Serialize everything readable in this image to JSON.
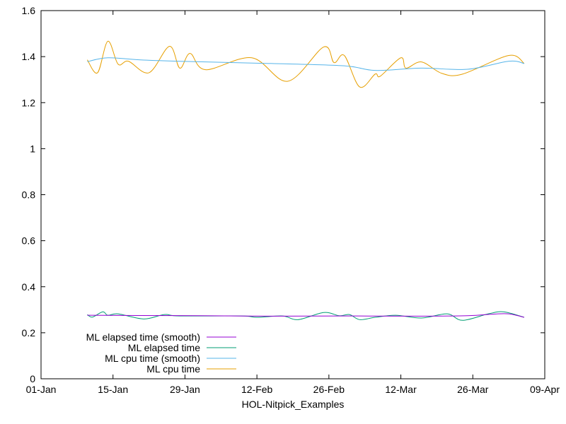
{
  "chart_data": {
    "type": "line",
    "title": "",
    "xlabel": "HOL-Nitpick_Examples",
    "ylabel": "",
    "ylim": [
      0,
      1.6
    ],
    "xlim": [
      "01-Jan",
      "09-Apr"
    ],
    "x_ticks": [
      "01-Jan",
      "15-Jan",
      "29-Jan",
      "12-Feb",
      "26-Feb",
      "12-Mar",
      "26-Mar",
      "09-Apr"
    ],
    "y_ticks": [
      "0",
      "0.2",
      "0.4",
      "0.6",
      "0.8",
      "1",
      "1.2",
      "1.4",
      "1.6"
    ],
    "grid": false,
    "legend_placement": "bottom-left",
    "series": [
      {
        "name": "ML elapsed time (smooth)",
        "color": "#9400d3",
        "points": [
          [
            "10-Jan",
            0.276
          ],
          [
            "20-Jan",
            0.275
          ],
          [
            "01-Feb",
            0.274
          ],
          [
            "15-Feb",
            0.272
          ],
          [
            "01-Mar",
            0.273
          ],
          [
            "15-Mar",
            0.272
          ],
          [
            "25-Mar",
            0.274
          ],
          [
            "30-Mar",
            0.281
          ],
          [
            "02-Apr",
            0.282
          ],
          [
            "05-Apr",
            0.267
          ]
        ]
      },
      {
        "name": "ML elapsed time",
        "color": "#009e73",
        "points": [
          [
            "10-Jan",
            0.279
          ],
          [
            "11-Jan",
            0.268
          ],
          [
            "13-Jan",
            0.291
          ],
          [
            "14-Jan",
            0.276
          ],
          [
            "16-Jan",
            0.282
          ],
          [
            "21-Jan",
            0.26
          ],
          [
            "25-Jan",
            0.279
          ],
          [
            "28-Jan",
            0.273
          ],
          [
            "09-Feb",
            0.273
          ],
          [
            "12-Feb",
            0.267
          ],
          [
            "17-Feb",
            0.273
          ],
          [
            "20-Feb",
            0.257
          ],
          [
            "25-Feb",
            0.288
          ],
          [
            "28-Feb",
            0.274
          ],
          [
            "02-Mar",
            0.279
          ],
          [
            "04-Mar",
            0.257
          ],
          [
            "07-Mar",
            0.267
          ],
          [
            "11-Mar",
            0.276
          ],
          [
            "16-Mar",
            0.264
          ],
          [
            "21-Mar",
            0.282
          ],
          [
            "24-Mar",
            0.254
          ],
          [
            "29-Mar",
            0.282
          ],
          [
            "01-Apr",
            0.291
          ],
          [
            "05-Apr",
            0.267
          ]
        ]
      },
      {
        "name": "ML cpu time (smooth)",
        "color": "#56b4e9",
        "points": [
          [
            "10-Jan",
            1.378
          ],
          [
            "14-Jan",
            1.395
          ],
          [
            "21-Jan",
            1.385
          ],
          [
            "31-Jan",
            1.378
          ],
          [
            "15-Feb",
            1.37
          ],
          [
            "01-Mar",
            1.36
          ],
          [
            "07-Mar",
            1.34
          ],
          [
            "16-Mar",
            1.35
          ],
          [
            "25-Mar",
            1.345
          ],
          [
            "02-Apr",
            1.38
          ],
          [
            "05-Apr",
            1.37
          ]
        ]
      },
      {
        "name": "ML cpu time",
        "color": "#e69f00",
        "points": [
          [
            "10-Jan",
            1.386
          ],
          [
            "12-Jan",
            1.33
          ],
          [
            "14-Jan",
            1.467
          ],
          [
            "16-Jan",
            1.367
          ],
          [
            "18-Jan",
            1.38
          ],
          [
            "22-Jan",
            1.33
          ],
          [
            "26-Jan",
            1.445
          ],
          [
            "28-Jan",
            1.35
          ],
          [
            "30-Jan",
            1.414
          ],
          [
            "02-Feb",
            1.343
          ],
          [
            "11-Feb",
            1.395
          ],
          [
            "18-Feb",
            1.293
          ],
          [
            "25-Feb",
            1.442
          ],
          [
            "27-Feb",
            1.374
          ],
          [
            "01-Mar",
            1.405
          ],
          [
            "04-Mar",
            1.268
          ],
          [
            "07-Mar",
            1.324
          ],
          [
            "08-Mar",
            1.315
          ],
          [
            "12-Mar",
            1.395
          ],
          [
            "13-Mar",
            1.35
          ],
          [
            "16-Mar",
            1.377
          ],
          [
            "20-Mar",
            1.327
          ],
          [
            "24-Mar",
            1.324
          ],
          [
            "02-Apr",
            1.405
          ],
          [
            "05-Apr",
            1.37
          ]
        ]
      }
    ]
  }
}
